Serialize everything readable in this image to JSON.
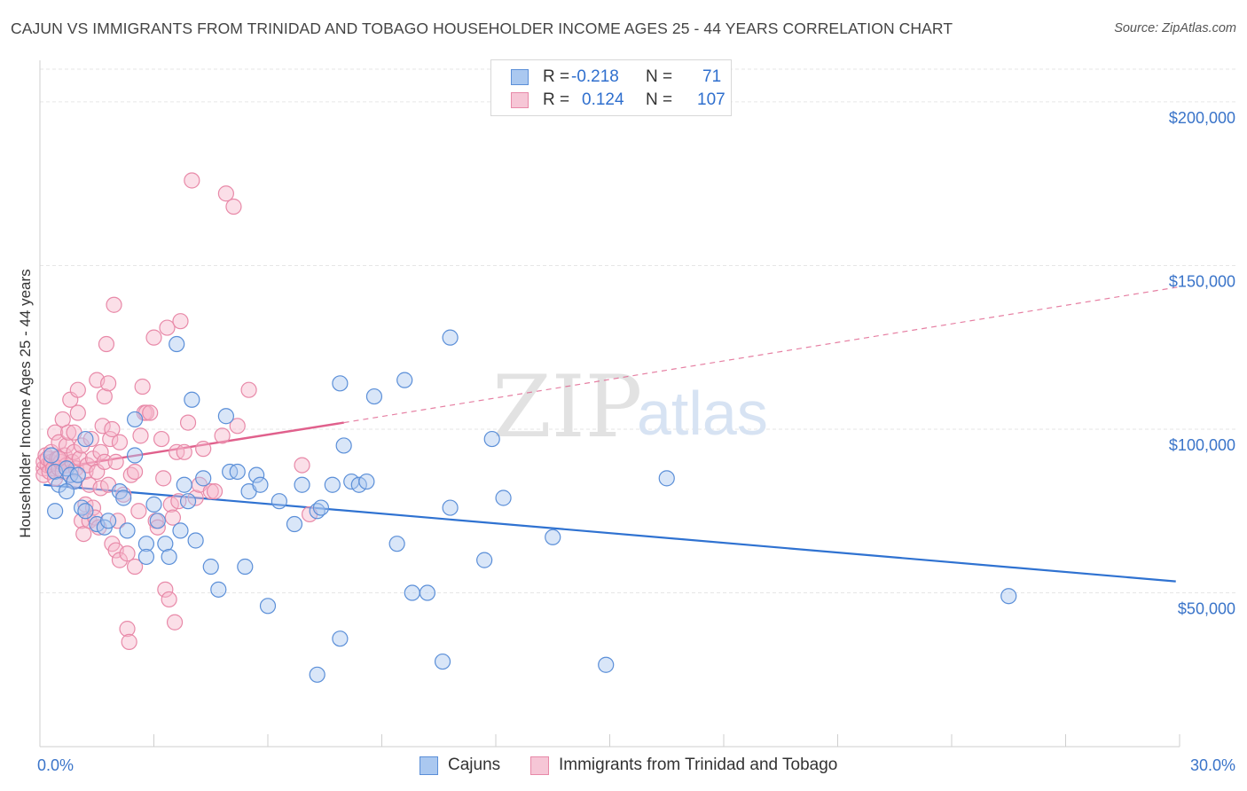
{
  "title": "CAJUN VS IMMIGRANTS FROM TRINIDAD AND TOBAGO HOUSEHOLDER INCOME AGES 25 - 44 YEARS CORRELATION CHART",
  "source": "Source: ZipAtlas.com",
  "watermark": {
    "zip": "ZIP",
    "atlas": "atlas"
  },
  "legend": {
    "rows": [
      {
        "r_label": "R =",
        "r_value": "-0.218",
        "n_label": "N =",
        "n_value": "71"
      },
      {
        "r_label": "R =",
        "r_value": "0.124",
        "n_label": "N =",
        "n_value": "107"
      }
    ]
  },
  "bottom_legend": [
    "Cajuns",
    "Immigrants from Trinidad and Tobago"
  ],
  "colors": {
    "blue_fill": "#aac8f0",
    "blue_stroke": "#5b8fd8",
    "blue_line": "#2f72d1",
    "pink_fill": "#f6b8cc",
    "pink_stroke": "#e889a8",
    "pink_line": "#e0608c",
    "grid": "#e6e6e6",
    "axis_text": "#3a74c9"
  },
  "chart_data": {
    "type": "scatter",
    "title": "CAJUN VS IMMIGRANTS FROM TRINIDAD AND TOBAGO HOUSEHOLDER INCOME AGES 25 - 44 YEARS CORRELATION CHART",
    "xlabel": "",
    "ylabel": "Householder Income Ages 25 - 44 years",
    "xlim": [
      0,
      30
    ],
    "ylim": [
      3000,
      210000
    ],
    "x_tick_labels": [
      "0.0%",
      "30.0%"
    ],
    "y_ticks": [
      50000,
      100000,
      150000,
      200000
    ],
    "y_tick_labels": [
      "$50,000",
      "$100,000",
      "$150,000",
      "$200,000"
    ],
    "grid": true,
    "legend_position": "top-center",
    "series": [
      {
        "name": "Cajuns",
        "color": "#5b8fd8",
        "r": -0.218,
        "n": 71,
        "trend": {
          "x": [
            0.1,
            29.9
          ],
          "y": [
            83000,
            53500
          ]
        },
        "points": [
          [
            0.3,
            92000
          ],
          [
            0.4,
            87000
          ],
          [
            0.5,
            83000
          ],
          [
            0.7,
            88000
          ],
          [
            0.8,
            86000
          ],
          [
            0.9,
            84000
          ],
          [
            1.1,
            76000
          ],
          [
            1.2,
            75000
          ],
          [
            0.4,
            75000
          ],
          [
            0.7,
            81000
          ],
          [
            1.0,
            86000
          ],
          [
            1.2,
            97000
          ],
          [
            1.5,
            71000
          ],
          [
            1.7,
            70000
          ],
          [
            1.8,
            72000
          ],
          [
            2.1,
            81000
          ],
          [
            2.2,
            79000
          ],
          [
            2.3,
            69000
          ],
          [
            2.5,
            92000
          ],
          [
            2.5,
            103000
          ],
          [
            2.8,
            65000
          ],
          [
            2.8,
            61000
          ],
          [
            3.0,
            77000
          ],
          [
            3.1,
            72000
          ],
          [
            3.3,
            65000
          ],
          [
            3.4,
            61000
          ],
          [
            3.6,
            126000
          ],
          [
            3.7,
            69000
          ],
          [
            3.8,
            83000
          ],
          [
            3.9,
            78000
          ],
          [
            4.0,
            109000
          ],
          [
            4.1,
            66000
          ],
          [
            4.3,
            85000
          ],
          [
            4.5,
            58000
          ],
          [
            4.7,
            51000
          ],
          [
            4.9,
            104000
          ],
          [
            5.0,
            87000
          ],
          [
            5.2,
            87000
          ],
          [
            5.4,
            58000
          ],
          [
            5.5,
            81000
          ],
          [
            5.7,
            86000
          ],
          [
            5.8,
            83000
          ],
          [
            6.0,
            46000
          ],
          [
            6.3,
            78000
          ],
          [
            6.7,
            71000
          ],
          [
            6.9,
            83000
          ],
          [
            7.3,
            75000
          ],
          [
            7.4,
            76000
          ],
          [
            7.7,
            83000
          ],
          [
            7.9,
            36000
          ],
          [
            8.0,
            95000
          ],
          [
            8.2,
            84000
          ],
          [
            8.4,
            83000
          ],
          [
            8.6,
            84000
          ],
          [
            7.3,
            25000
          ],
          [
            7.9,
            114000
          ],
          [
            8.8,
            110000
          ],
          [
            9.4,
            65000
          ],
          [
            9.6,
            115000
          ],
          [
            9.8,
            50000
          ],
          [
            10.2,
            50000
          ],
          [
            10.6,
            29000
          ],
          [
            10.8,
            76000
          ],
          [
            10.8,
            128000
          ],
          [
            11.7,
            60000
          ],
          [
            11.9,
            97000
          ],
          [
            12.2,
            79000
          ],
          [
            13.5,
            67000
          ],
          [
            14.9,
            28000
          ],
          [
            16.5,
            85000
          ],
          [
            25.5,
            49000
          ]
        ]
      },
      {
        "name": "Immigrants from Trinidad and Tobago",
        "color": "#e889a8",
        "r": 0.124,
        "n": 107,
        "trend": {
          "x": [
            0.1,
            8.0
          ],
          "y": [
            87500,
            102000
          ],
          "dashed_to": {
            "x": 30.0,
            "y": 143500
          }
        },
        "points": [
          [
            0.1,
            88000
          ],
          [
            0.1,
            90000
          ],
          [
            0.1,
            86000
          ],
          [
            0.15,
            92000
          ],
          [
            0.2,
            89000
          ],
          [
            0.2,
            91000
          ],
          [
            0.25,
            87000
          ],
          [
            0.3,
            90000
          ],
          [
            0.3,
            93000
          ],
          [
            0.35,
            88000
          ],
          [
            0.4,
            85000
          ],
          [
            0.4,
            99000
          ],
          [
            0.45,
            91000
          ],
          [
            0.5,
            88000
          ],
          [
            0.5,
            96000
          ],
          [
            0.55,
            90000
          ],
          [
            0.6,
            87000
          ],
          [
            0.6,
            103000
          ],
          [
            0.65,
            92000
          ],
          [
            0.7,
            89000
          ],
          [
            0.7,
            95000
          ],
          [
            0.75,
            99000
          ],
          [
            0.8,
            86000
          ],
          [
            0.8,
            109000
          ],
          [
            0.85,
            90000
          ],
          [
            0.9,
            93000
          ],
          [
            0.9,
            84000
          ],
          [
            0.95,
            88000
          ],
          [
            1.0,
            105000
          ],
          [
            1.0,
            112000
          ],
          [
            1.05,
            91000
          ],
          [
            1.1,
            72000
          ],
          [
            1.1,
            95000
          ],
          [
            1.15,
            68000
          ],
          [
            1.2,
            87000
          ],
          [
            1.2,
            77000
          ],
          [
            1.25,
            89000
          ],
          [
            1.3,
            83000
          ],
          [
            1.3,
            72000
          ],
          [
            1.35,
            97000
          ],
          [
            1.4,
            91000
          ],
          [
            1.4,
            76000
          ],
          [
            1.45,
            73000
          ],
          [
            1.5,
            115000
          ],
          [
            1.5,
            87000
          ],
          [
            1.55,
            70000
          ],
          [
            1.6,
            82000
          ],
          [
            1.6,
            93000
          ],
          [
            1.65,
            101000
          ],
          [
            1.7,
            110000
          ],
          [
            1.7,
            90000
          ],
          [
            1.75,
            126000
          ],
          [
            1.8,
            114000
          ],
          [
            1.8,
            83000
          ],
          [
            1.85,
            97000
          ],
          [
            1.9,
            100000
          ],
          [
            1.9,
            65000
          ],
          [
            1.95,
            138000
          ],
          [
            2.0,
            63000
          ],
          [
            2.0,
            90000
          ],
          [
            2.05,
            72000
          ],
          [
            2.1,
            96000
          ],
          [
            2.1,
            60000
          ],
          [
            2.2,
            80000
          ],
          [
            2.3,
            62000
          ],
          [
            2.3,
            39000
          ],
          [
            2.35,
            35000
          ],
          [
            2.4,
            86000
          ],
          [
            2.5,
            87000
          ],
          [
            2.5,
            58000
          ],
          [
            2.6,
            75000
          ],
          [
            2.65,
            98000
          ],
          [
            2.7,
            113000
          ],
          [
            2.75,
            105000
          ],
          [
            2.8,
            105000
          ],
          [
            2.9,
            105000
          ],
          [
            3.0,
            128000
          ],
          [
            3.05,
            72000
          ],
          [
            3.1,
            70000
          ],
          [
            3.2,
            97000
          ],
          [
            3.25,
            85000
          ],
          [
            3.3,
            51000
          ],
          [
            3.35,
            131000
          ],
          [
            3.4,
            48000
          ],
          [
            3.45,
            77000
          ],
          [
            3.5,
            73000
          ],
          [
            3.55,
            41000
          ],
          [
            3.6,
            93000
          ],
          [
            3.65,
            78000
          ],
          [
            3.7,
            133000
          ],
          [
            3.8,
            93000
          ],
          [
            3.9,
            102000
          ],
          [
            4.0,
            176000
          ],
          [
            4.1,
            79000
          ],
          [
            4.2,
            83000
          ],
          [
            4.3,
            94000
          ],
          [
            4.5,
            81000
          ],
          [
            4.6,
            81000
          ],
          [
            4.8,
            98000
          ],
          [
            4.9,
            172000
          ],
          [
            5.1,
            168000
          ],
          [
            5.2,
            101000
          ],
          [
            5.5,
            112000
          ],
          [
            6.9,
            89000
          ],
          [
            7.1,
            74000
          ],
          [
            0.5,
            91000
          ],
          [
            0.9,
            99000
          ]
        ]
      }
    ]
  }
}
